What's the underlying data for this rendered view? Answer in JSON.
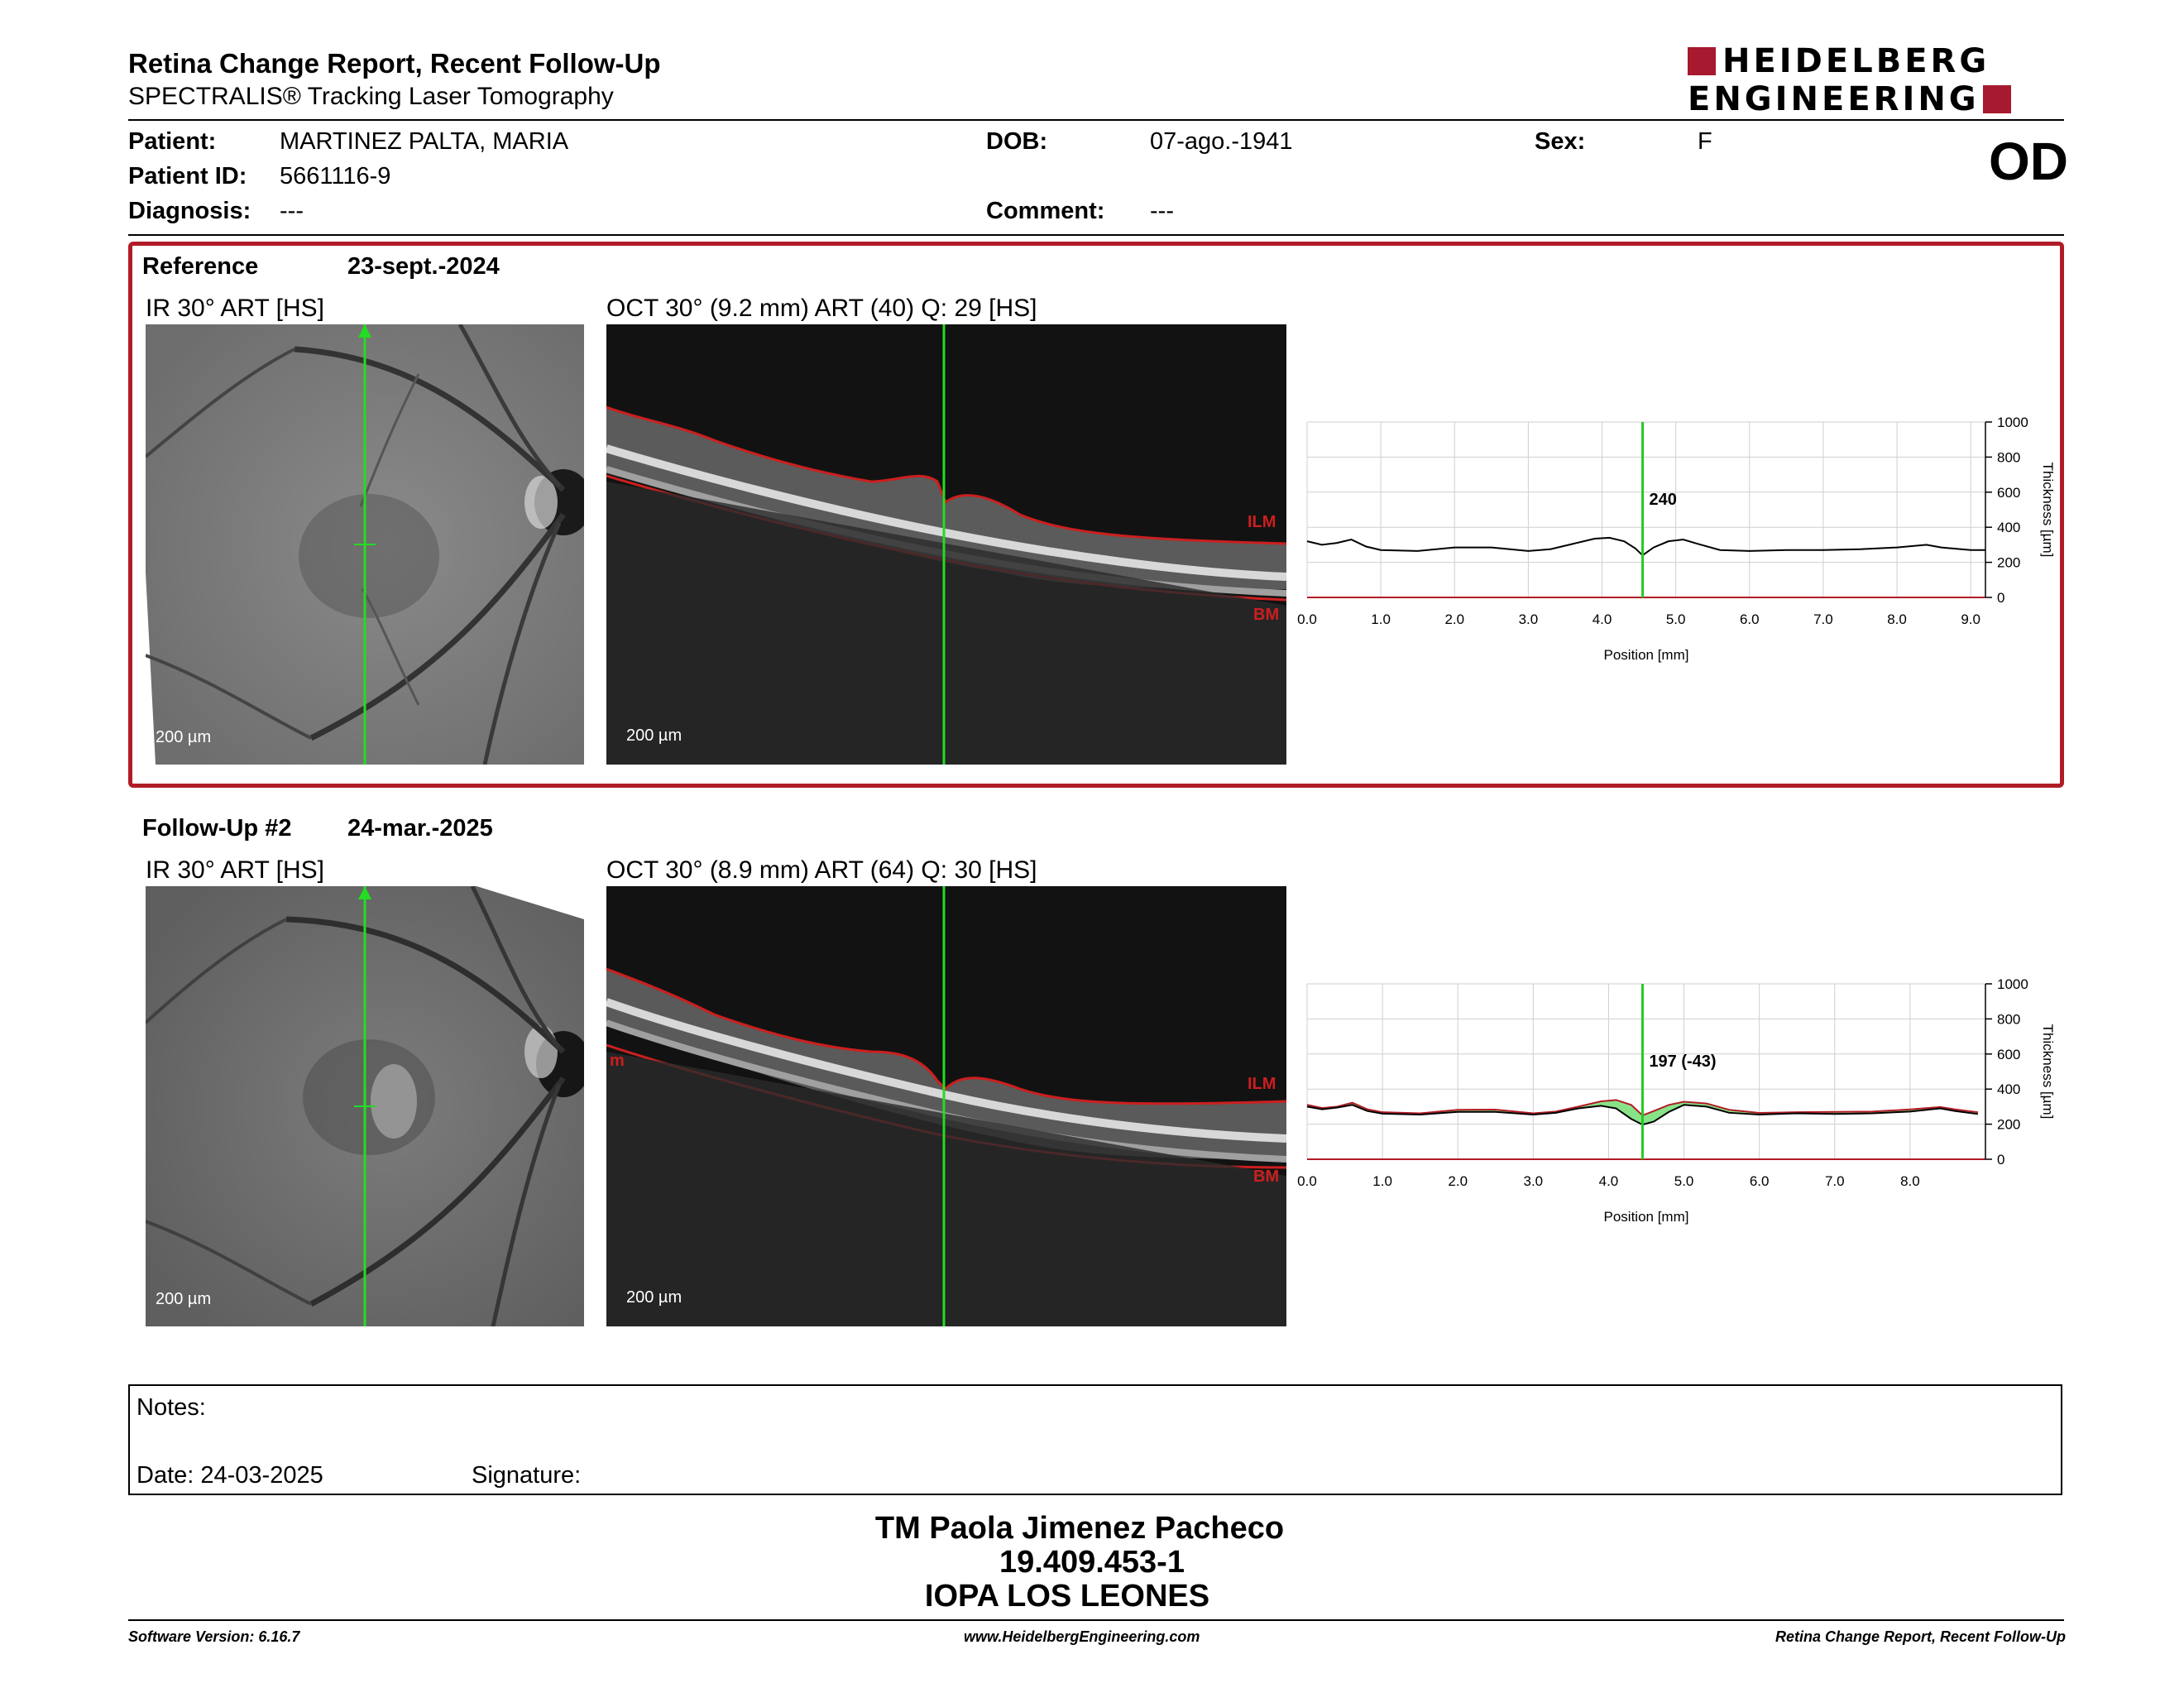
{
  "header": {
    "title": "Retina Change Report, Recent Follow-Up",
    "subtitle": "SPECTRALIS® Tracking Laser Tomography",
    "logo_line1": "HEIDELBERG",
    "logo_line2": "ENGINEERING"
  },
  "patient": {
    "patient_label": "Patient:",
    "patient_name": "MARTINEZ PALTA, MARIA",
    "id_label": "Patient ID:",
    "id_value": "5661116-9",
    "diagnosis_label": "Diagnosis:",
    "diagnosis_value": "---",
    "dob_label": "DOB:",
    "dob_value": "07-ago.-1941",
    "comment_label": "Comment:",
    "comment_value": "---",
    "sex_label": "Sex:",
    "sex_value": "F",
    "eye": "OD"
  },
  "reference": {
    "label": "Reference",
    "date": "23-sept.-2024",
    "ir_label": "IR 30° ART [HS]",
    "oct_label": "OCT 30° (9.2 mm) ART (40) Q: 29 [HS]",
    "scale": "200 µm",
    "ilm": "ILM",
    "bm": "BM"
  },
  "followup": {
    "label": "Follow-Up #2",
    "date": "24-mar.-2025",
    "ir_label": "IR 30° ART [HS]",
    "oct_label": "OCT 30° (8.9 mm) ART (64) Q: 30 [HS]",
    "scale": "200 µm",
    "ilm": "ILM",
    "bm": "BM",
    "m_mark": "m"
  },
  "chart_data": [
    {
      "type": "line",
      "xlabel": "Position [mm]",
      "ylabel": "Thickness [µm]",
      "xlim": [
        0,
        9.2
      ],
      "ylim": [
        0,
        1000
      ],
      "xticks": [
        "0.0",
        "1.0",
        "2.0",
        "3.0",
        "4.0",
        "5.0",
        "6.0",
        "7.0",
        "8.0",
        "9.0"
      ],
      "yticks": [
        "0",
        "200",
        "400",
        "600",
        "800",
        "1000"
      ],
      "grid": true,
      "cursor_x": 4.55,
      "cursor_label": "240",
      "cursor_color": "#22cc22",
      "series": [
        {
          "color": "#000000",
          "x": [
            0.0,
            0.2,
            0.4,
            0.6,
            0.8,
            1.0,
            1.5,
            2.0,
            2.5,
            3.0,
            3.3,
            3.6,
            3.9,
            4.1,
            4.3,
            4.45,
            4.55,
            4.7,
            4.9,
            5.1,
            5.3,
            5.6,
            6.0,
            6.5,
            7.0,
            7.5,
            8.0,
            8.4,
            8.6,
            9.0,
            9.2
          ],
          "y": [
            320,
            300,
            310,
            330,
            290,
            270,
            265,
            285,
            285,
            265,
            275,
            305,
            335,
            340,
            320,
            280,
            240,
            285,
            320,
            330,
            305,
            270,
            265,
            270,
            270,
            275,
            285,
            300,
            285,
            270,
            270
          ]
        }
      ]
    },
    {
      "type": "line",
      "xlabel": "Position [mm]",
      "ylabel": "Thickness [µm]",
      "xlim": [
        0,
        9.0
      ],
      "ylim": [
        0,
        1000
      ],
      "xticks": [
        "0.0",
        "1.0",
        "2.0",
        "3.0",
        "4.0",
        "5.0",
        "6.0",
        "7.0",
        "8.0"
      ],
      "yticks": [
        "0",
        "200",
        "400",
        "600",
        "800",
        "1000"
      ],
      "grid": true,
      "cursor_x": 4.45,
      "cursor_label": "197 (-43)",
      "cursor_color": "#22cc22",
      "fill_color": "#7be07b",
      "series": [
        {
          "color": "#000000",
          "x": [
            0.0,
            0.2,
            0.4,
            0.6,
            0.8,
            1.0,
            1.5,
            2.0,
            2.5,
            3.0,
            3.3,
            3.6,
            3.9,
            4.1,
            4.3,
            4.45,
            4.6,
            4.8,
            5.0,
            5.3,
            5.6,
            6.0,
            6.5,
            7.0,
            7.5,
            8.0,
            8.4,
            8.6,
            8.9
          ],
          "y": [
            300,
            285,
            295,
            310,
            275,
            260,
            255,
            270,
            270,
            255,
            265,
            290,
            305,
            290,
            230,
            197,
            215,
            270,
            310,
            300,
            265,
            255,
            262,
            258,
            262,
            272,
            290,
            275,
            258
          ]
        },
        {
          "color": "#b11c26",
          "x": [
            0.0,
            0.2,
            0.4,
            0.6,
            0.8,
            1.0,
            1.5,
            2.0,
            2.5,
            3.0,
            3.3,
            3.6,
            3.9,
            4.1,
            4.3,
            4.45,
            4.6,
            4.8,
            5.0,
            5.3,
            5.6,
            6.0,
            6.5,
            7.0,
            7.5,
            8.0,
            8.4,
            8.6,
            8.9
          ],
          "y": [
            310,
            292,
            300,
            322,
            285,
            268,
            262,
            282,
            283,
            262,
            272,
            300,
            330,
            338,
            310,
            250,
            275,
            310,
            328,
            318,
            282,
            264,
            268,
            270,
            272,
            284,
            298,
            284,
            268
          ]
        }
      ]
    }
  ],
  "notes": {
    "notes_label": "Notes:",
    "date_label": "Date: 24-03-2025",
    "signature_label": "Signature:"
  },
  "signature_block": {
    "name": "TM Paola Jimenez Pacheco",
    "rut": "19.409.453-1",
    "center": "IOPA LOS LEONES"
  },
  "footer": {
    "software": "Software Version: 6.16.7",
    "website": "www.HeidelbergEngineering.com",
    "report": "Retina Change Report, Recent Follow-Up"
  }
}
